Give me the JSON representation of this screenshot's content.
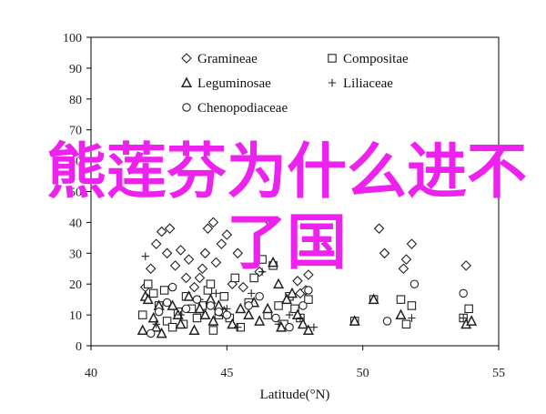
{
  "overlay": {
    "line1": "熊莲芬为什么进不",
    "line2": "了国"
  },
  "colors": {
    "overlay": "#ee22ee",
    "marker": "#222222"
  },
  "chart_data": {
    "type": "scatter",
    "title": "",
    "xlabel": "Latitude(°N)",
    "ylabel": "",
    "xlim": [
      40,
      55
    ],
    "ylim": [
      0,
      100
    ],
    "xticks": [
      40,
      45,
      50,
      55
    ],
    "yticks": [
      0,
      10,
      20,
      30,
      40,
      50,
      60,
      70,
      80,
      90,
      100
    ],
    "grid": false,
    "legend_position": "top",
    "series": [
      {
        "name": "Gramineae",
        "marker": "diamond",
        "points": [
          [
            42.0,
            19
          ],
          [
            42.2,
            25
          ],
          [
            42.4,
            33
          ],
          [
            42.6,
            37
          ],
          [
            42.8,
            30
          ],
          [
            42.9,
            38
          ],
          [
            43.1,
            26
          ],
          [
            43.3,
            31
          ],
          [
            43.5,
            22
          ],
          [
            43.6,
            28
          ],
          [
            43.8,
            19
          ],
          [
            44.0,
            22
          ],
          [
            44.1,
            25
          ],
          [
            44.2,
            30
          ],
          [
            44.3,
            38
          ],
          [
            44.5,
            40
          ],
          [
            44.6,
            27
          ],
          [
            44.8,
            33
          ],
          [
            45.0,
            36
          ],
          [
            45.2,
            20
          ],
          [
            45.4,
            30
          ],
          [
            45.6,
            19
          ],
          [
            46.2,
            24
          ],
          [
            46.6,
            40
          ],
          [
            47.6,
            21
          ],
          [
            47.7,
            17
          ],
          [
            47.9,
            18
          ],
          [
            48.0,
            23
          ],
          [
            50.6,
            38
          ],
          [
            50.8,
            30
          ],
          [
            51.5,
            25
          ],
          [
            51.6,
            28
          ],
          [
            51.8,
            33
          ],
          [
            53.8,
            26
          ]
        ]
      },
      {
        "name": "Compositae",
        "marker": "square",
        "points": [
          [
            41.9,
            10
          ],
          [
            42.1,
            20
          ],
          [
            42.3,
            17
          ],
          [
            42.5,
            13
          ],
          [
            42.7,
            18
          ],
          [
            42.8,
            8
          ],
          [
            43.0,
            6
          ],
          [
            43.2,
            11
          ],
          [
            43.4,
            7
          ],
          [
            43.5,
            16
          ],
          [
            43.7,
            12
          ],
          [
            43.9,
            9
          ],
          [
            44.1,
            13
          ],
          [
            44.3,
            18
          ],
          [
            44.4,
            20
          ],
          [
            44.5,
            5
          ],
          [
            44.7,
            10
          ],
          [
            44.9,
            16
          ],
          [
            45.1,
            9
          ],
          [
            45.3,
            22
          ],
          [
            45.5,
            6
          ],
          [
            45.8,
            14
          ],
          [
            46.0,
            22
          ],
          [
            46.3,
            28
          ],
          [
            46.5,
            10
          ],
          [
            46.7,
            26
          ],
          [
            46.9,
            13
          ],
          [
            47.1,
            7
          ],
          [
            47.3,
            16
          ],
          [
            47.5,
            12
          ],
          [
            47.7,
            9
          ],
          [
            48.0,
            15
          ],
          [
            49.7,
            8
          ],
          [
            50.4,
            15
          ],
          [
            51.4,
            15
          ],
          [
            51.6,
            7
          ],
          [
            51.8,
            13
          ],
          [
            53.7,
            9
          ],
          [
            53.9,
            12
          ]
        ]
      },
      {
        "name": "Leguminosae",
        "marker": "triangle",
        "points": [
          [
            41.9,
            5
          ],
          [
            42.0,
            16
          ],
          [
            42.1,
            15
          ],
          [
            42.3,
            9
          ],
          [
            42.4,
            6
          ],
          [
            42.5,
            13
          ],
          [
            42.6,
            4
          ],
          [
            43.0,
            13
          ],
          [
            43.2,
            10
          ],
          [
            43.3,
            7
          ],
          [
            43.6,
            16
          ],
          [
            43.8,
            5
          ],
          [
            44.0,
            12
          ],
          [
            44.2,
            10
          ],
          [
            44.4,
            15
          ],
          [
            44.5,
            8
          ],
          [
            44.7,
            13
          ],
          [
            44.9,
            11
          ],
          [
            45.2,
            7
          ],
          [
            45.5,
            12
          ],
          [
            45.8,
            10
          ],
          [
            46.0,
            14
          ],
          [
            46.2,
            8
          ],
          [
            46.5,
            12
          ],
          [
            46.7,
            27
          ],
          [
            46.9,
            20
          ],
          [
            47.0,
            6
          ],
          [
            47.2,
            15
          ],
          [
            47.4,
            17
          ],
          [
            47.6,
            10
          ],
          [
            47.8,
            7
          ],
          [
            48.0,
            5
          ],
          [
            49.7,
            8
          ],
          [
            50.4,
            15
          ],
          [
            51.4,
            10
          ],
          [
            53.8,
            7
          ],
          [
            54.0,
            8
          ]
        ]
      },
      {
        "name": "Liliaceae",
        "marker": "plus",
        "points": [
          [
            42.0,
            29
          ],
          [
            42.4,
            7
          ],
          [
            43.3,
            10
          ],
          [
            44.0,
            15
          ],
          [
            44.6,
            17
          ],
          [
            45.0,
            12
          ],
          [
            45.4,
            6
          ],
          [
            45.9,
            17
          ],
          [
            46.3,
            24
          ],
          [
            46.9,
            7
          ],
          [
            47.3,
            10
          ],
          [
            47.7,
            9
          ],
          [
            48.2,
            6
          ],
          [
            51.8,
            9
          ],
          [
            53.7,
            9
          ]
        ]
      },
      {
        "name": "Chenopodiaceae",
        "marker": "circle",
        "points": [
          [
            42.2,
            4
          ],
          [
            42.5,
            11
          ],
          [
            42.8,
            14
          ],
          [
            43.0,
            19
          ],
          [
            43.5,
            12
          ],
          [
            43.9,
            15
          ],
          [
            44.4,
            13
          ],
          [
            44.7,
            11
          ],
          [
            45.0,
            10
          ],
          [
            45.8,
            13
          ],
          [
            46.2,
            16
          ],
          [
            46.8,
            9
          ],
          [
            47.3,
            6
          ],
          [
            47.8,
            13
          ],
          [
            48.0,
            18
          ],
          [
            50.9,
            8
          ],
          [
            51.9,
            20
          ],
          [
            53.7,
            17
          ]
        ]
      }
    ]
  }
}
